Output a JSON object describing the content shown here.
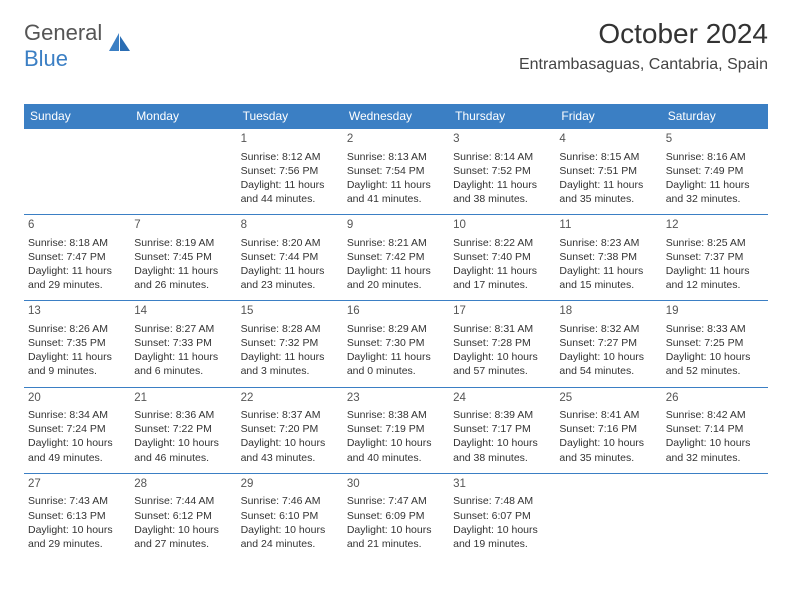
{
  "logo": {
    "text1": "General",
    "text2": "Blue"
  },
  "colors": {
    "header_bg": "#3b7fc4",
    "header_text": "#ffffff",
    "border": "#3b7fc4",
    "text": "#333333",
    "logo_gray": "#555555",
    "logo_blue": "#3b7fc4"
  },
  "title": "October 2024",
  "location": "Entrambasaguas, Cantabria, Spain",
  "day_headers": [
    "Sunday",
    "Monday",
    "Tuesday",
    "Wednesday",
    "Thursday",
    "Friday",
    "Saturday"
  ],
  "weeks": [
    [
      null,
      null,
      {
        "n": "1",
        "sr": "8:12 AM",
        "ss": "7:56 PM",
        "dl": "11 hours and 44 minutes."
      },
      {
        "n": "2",
        "sr": "8:13 AM",
        "ss": "7:54 PM",
        "dl": "11 hours and 41 minutes."
      },
      {
        "n": "3",
        "sr": "8:14 AM",
        "ss": "7:52 PM",
        "dl": "11 hours and 38 minutes."
      },
      {
        "n": "4",
        "sr": "8:15 AM",
        "ss": "7:51 PM",
        "dl": "11 hours and 35 minutes."
      },
      {
        "n": "5",
        "sr": "8:16 AM",
        "ss": "7:49 PM",
        "dl": "11 hours and 32 minutes."
      }
    ],
    [
      {
        "n": "6",
        "sr": "8:18 AM",
        "ss": "7:47 PM",
        "dl": "11 hours and 29 minutes."
      },
      {
        "n": "7",
        "sr": "8:19 AM",
        "ss": "7:45 PM",
        "dl": "11 hours and 26 minutes."
      },
      {
        "n": "8",
        "sr": "8:20 AM",
        "ss": "7:44 PM",
        "dl": "11 hours and 23 minutes."
      },
      {
        "n": "9",
        "sr": "8:21 AM",
        "ss": "7:42 PM",
        "dl": "11 hours and 20 minutes."
      },
      {
        "n": "10",
        "sr": "8:22 AM",
        "ss": "7:40 PM",
        "dl": "11 hours and 17 minutes."
      },
      {
        "n": "11",
        "sr": "8:23 AM",
        "ss": "7:38 PM",
        "dl": "11 hours and 15 minutes."
      },
      {
        "n": "12",
        "sr": "8:25 AM",
        "ss": "7:37 PM",
        "dl": "11 hours and 12 minutes."
      }
    ],
    [
      {
        "n": "13",
        "sr": "8:26 AM",
        "ss": "7:35 PM",
        "dl": "11 hours and 9 minutes."
      },
      {
        "n": "14",
        "sr": "8:27 AM",
        "ss": "7:33 PM",
        "dl": "11 hours and 6 minutes."
      },
      {
        "n": "15",
        "sr": "8:28 AM",
        "ss": "7:32 PM",
        "dl": "11 hours and 3 minutes."
      },
      {
        "n": "16",
        "sr": "8:29 AM",
        "ss": "7:30 PM",
        "dl": "11 hours and 0 minutes."
      },
      {
        "n": "17",
        "sr": "8:31 AM",
        "ss": "7:28 PM",
        "dl": "10 hours and 57 minutes."
      },
      {
        "n": "18",
        "sr": "8:32 AM",
        "ss": "7:27 PM",
        "dl": "10 hours and 54 minutes."
      },
      {
        "n": "19",
        "sr": "8:33 AM",
        "ss": "7:25 PM",
        "dl": "10 hours and 52 minutes."
      }
    ],
    [
      {
        "n": "20",
        "sr": "8:34 AM",
        "ss": "7:24 PM",
        "dl": "10 hours and 49 minutes."
      },
      {
        "n": "21",
        "sr": "8:36 AM",
        "ss": "7:22 PM",
        "dl": "10 hours and 46 minutes."
      },
      {
        "n": "22",
        "sr": "8:37 AM",
        "ss": "7:20 PM",
        "dl": "10 hours and 43 minutes."
      },
      {
        "n": "23",
        "sr": "8:38 AM",
        "ss": "7:19 PM",
        "dl": "10 hours and 40 minutes."
      },
      {
        "n": "24",
        "sr": "8:39 AM",
        "ss": "7:17 PM",
        "dl": "10 hours and 38 minutes."
      },
      {
        "n": "25",
        "sr": "8:41 AM",
        "ss": "7:16 PM",
        "dl": "10 hours and 35 minutes."
      },
      {
        "n": "26",
        "sr": "8:42 AM",
        "ss": "7:14 PM",
        "dl": "10 hours and 32 minutes."
      }
    ],
    [
      {
        "n": "27",
        "sr": "7:43 AM",
        "ss": "6:13 PM",
        "dl": "10 hours and 29 minutes."
      },
      {
        "n": "28",
        "sr": "7:44 AM",
        "ss": "6:12 PM",
        "dl": "10 hours and 27 minutes."
      },
      {
        "n": "29",
        "sr": "7:46 AM",
        "ss": "6:10 PM",
        "dl": "10 hours and 24 minutes."
      },
      {
        "n": "30",
        "sr": "7:47 AM",
        "ss": "6:09 PM",
        "dl": "10 hours and 21 minutes."
      },
      {
        "n": "31",
        "sr": "7:48 AM",
        "ss": "6:07 PM",
        "dl": "10 hours and 19 minutes."
      },
      null,
      null
    ]
  ],
  "labels": {
    "sunrise": "Sunrise: ",
    "sunset": "Sunset: ",
    "daylight": "Daylight: "
  }
}
